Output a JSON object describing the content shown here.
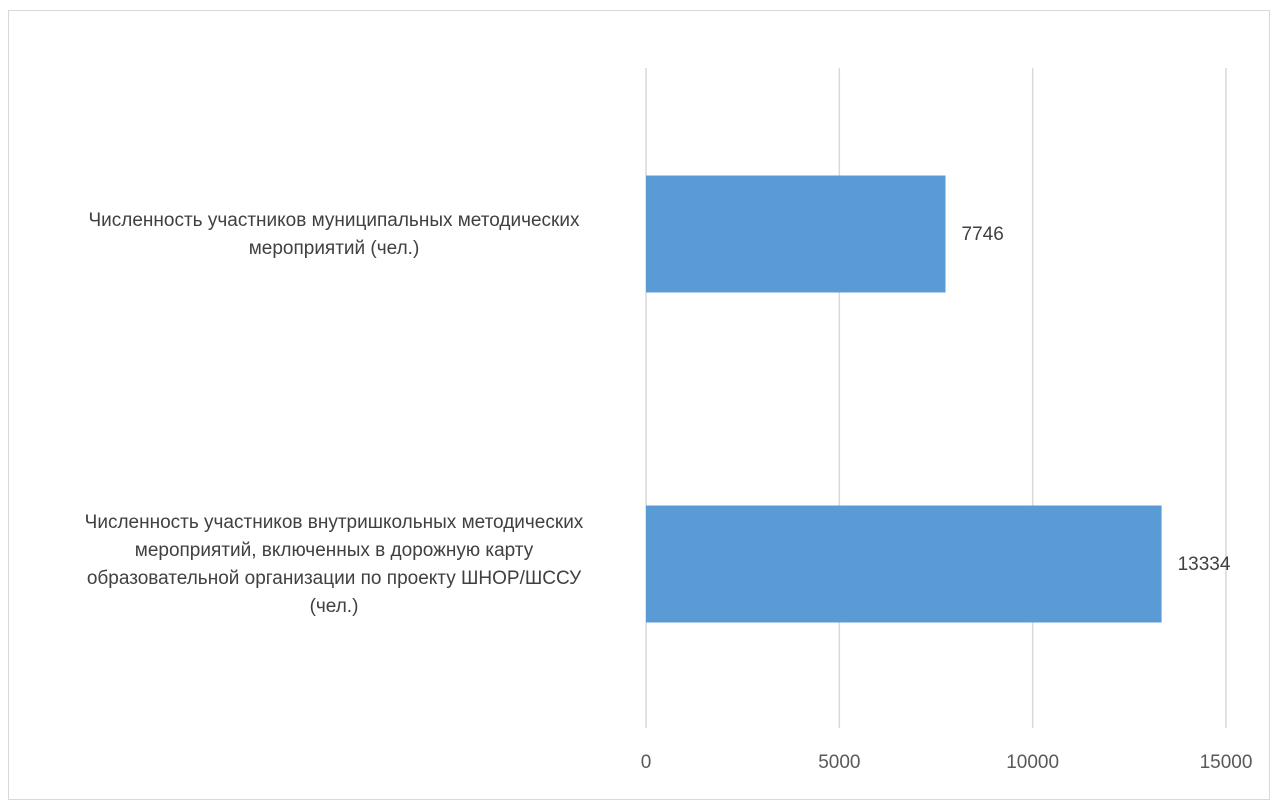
{
  "chart_data": {
    "type": "bar",
    "orientation": "horizontal",
    "categories": [
      "Численность участников муниципальных методических мероприятий (чел.)",
      "Численность участников внутришкольных методических мероприятий, включенных в дорожную карту образовательной организации по проекту ШНОР/ШССУ (чел.)"
    ],
    "category_lines": [
      [
        "Численность участников муниципальных методических",
        "мероприятий (чел.)"
      ],
      [
        "Численность участников внутришкольных методических",
        "мероприятий, включенных в дорожную карту",
        "образовательной организации по проекту ШНОР/ШССУ",
        "(чел.)"
      ]
    ],
    "values": [
      7746,
      13334
    ],
    "data_labels": [
      "7746",
      "13334"
    ],
    "xlim": [
      0,
      15000
    ],
    "xticks": [
      0,
      5000,
      10000,
      15000
    ],
    "xtick_labels": [
      "0",
      "5000",
      "10000",
      "15000"
    ],
    "grid": true,
    "legend": "none",
    "bar_color": "#5b9bd5",
    "title": "",
    "xlabel": "",
    "ylabel": ""
  }
}
